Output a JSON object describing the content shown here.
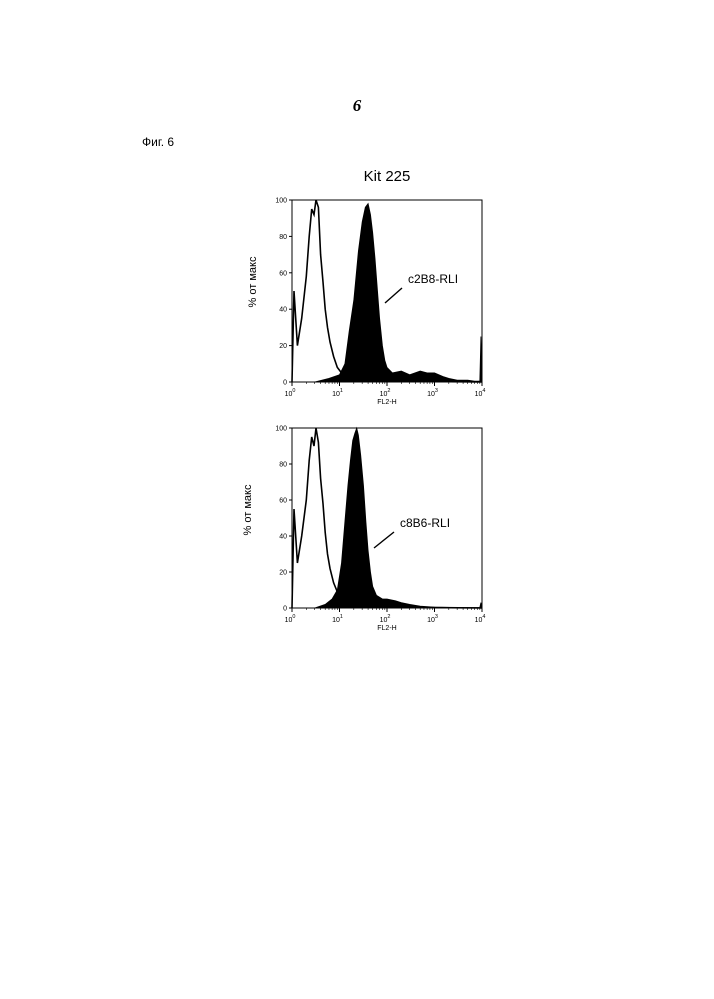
{
  "page_number": "6",
  "figure_label": "Фиг. 6",
  "figure_title": "Kit 225",
  "chart_data": [
    {
      "type": "area",
      "xscale": "log",
      "xlim": [
        1,
        10000
      ],
      "ylim": [
        0,
        100
      ],
      "xlabel": "FL2-H",
      "ylabel": "% от макс",
      "yticks": [
        "0",
        "20",
        "40",
        "60",
        "80",
        "100"
      ],
      "xticks": [
        {
          "base": "10",
          "exp": "0"
        },
        {
          "base": "10",
          "exp": "1"
        },
        {
          "base": "10",
          "exp": "2"
        },
        {
          "base": "10",
          "exp": "3"
        },
        {
          "base": "10",
          "exp": "4"
        }
      ],
      "annotation": "c2B8-RLI",
      "series": [
        {
          "style": "outline",
          "x": [
            1.0,
            1.1,
            1.3,
            1.6,
            2.0,
            2.3,
            2.6,
            2.9,
            3.2,
            3.6,
            4.0,
            4.5,
            5.0,
            5.6,
            6.3,
            7.5,
            9.0,
            11,
            14,
            18,
            25,
            40,
            100,
            1000,
            10000
          ],
          "values": [
            0,
            50,
            20,
            35,
            58,
            80,
            95,
            92,
            100,
            96,
            70,
            55,
            40,
            30,
            22,
            14,
            8,
            5,
            3,
            2,
            1,
            0.5,
            0.3,
            0.2,
            0
          ]
        },
        {
          "style": "filled",
          "x": [
            3,
            6,
            10,
            13,
            16,
            20,
            25,
            30,
            35,
            40,
            45,
            50,
            56,
            63,
            70,
            80,
            90,
            100,
            130,
            200,
            300,
            500,
            700,
            1000,
            1500,
            2000,
            3000,
            5000,
            7000,
            9000,
            9500,
            10000
          ],
          "values": [
            0,
            2,
            4,
            10,
            28,
            45,
            72,
            88,
            96,
            98,
            92,
            82,
            68,
            50,
            35,
            20,
            12,
            8,
            5,
            6,
            4,
            6,
            5,
            5,
            3,
            2,
            1,
            1,
            0.5,
            0.5,
            25,
            0
          ]
        }
      ]
    },
    {
      "type": "area",
      "xscale": "log",
      "xlim": [
        1,
        10000
      ],
      "ylim": [
        0,
        100
      ],
      "xlabel": "FL2-H",
      "ylabel": "% от макс",
      "yticks": [
        "0",
        "20",
        "40",
        "60",
        "80",
        "100"
      ],
      "xticks": [
        {
          "base": "10",
          "exp": "0"
        },
        {
          "base": "10",
          "exp": "1"
        },
        {
          "base": "10",
          "exp": "2"
        },
        {
          "base": "10",
          "exp": "3"
        },
        {
          "base": "10",
          "exp": "4"
        }
      ],
      "annotation": "c8B6-RLI",
      "series": [
        {
          "style": "outline",
          "x": [
            1.0,
            1.1,
            1.3,
            1.6,
            2.0,
            2.3,
            2.6,
            2.9,
            3.2,
            3.6,
            4.0,
            4.5,
            5.0,
            5.6,
            6.3,
            7.5,
            9.0,
            11,
            14,
            18,
            25,
            40,
            100,
            1000,
            10000
          ],
          "values": [
            0,
            55,
            25,
            40,
            60,
            82,
            95,
            90,
            100,
            92,
            72,
            58,
            42,
            30,
            22,
            14,
            9,
            5,
            3,
            2,
            1,
            0.5,
            0.3,
            0.2,
            0
          ]
        },
        {
          "style": "filled",
          "x": [
            3,
            5,
            7,
            9,
            11,
            13,
            15,
            17,
            19,
            21,
            23,
            25,
            28,
            32,
            36,
            40,
            45,
            50,
            60,
            80,
            100,
            150,
            200,
            300,
            500,
            1000,
            3000,
            9000,
            9500,
            10000
          ],
          "values": [
            0,
            2,
            5,
            10,
            25,
            48,
            68,
            82,
            93,
            97,
            100,
            96,
            85,
            68,
            48,
            32,
            20,
            12,
            7,
            5,
            5,
            4,
            3,
            2,
            1,
            0.5,
            0.3,
            0.3,
            3,
            0
          ]
        }
      ]
    }
  ]
}
